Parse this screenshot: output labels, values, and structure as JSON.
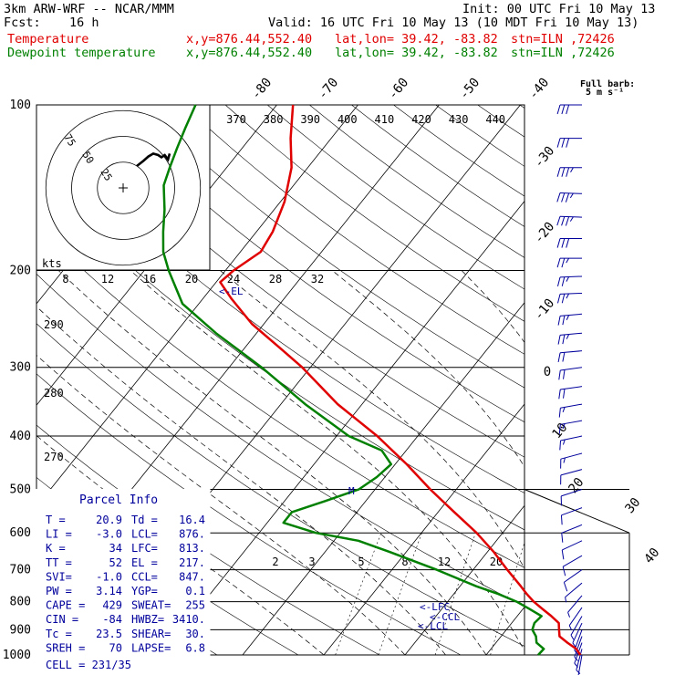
{
  "header": {
    "model": "3km ARW-WRF -- NCAR/MMM",
    "init": "Init: 00 UTC Fri 10 May 13",
    "fcst_label": "Fcst:",
    "fcst_value": "16 h",
    "valid": "Valid: 16 UTC Fri 10 May 13 (10 MDT Fri 10 May 13)",
    "lines": [
      {
        "label": "Temperature",
        "coords": "x,y=876.44,552.40",
        "latlon": "lat,lon= 39.42, -83.82",
        "stn": "stn=ILN ,72426",
        "color": "#e00000"
      },
      {
        "label": "Dewpoint temperature",
        "coords": "x,y=876.44,552.40",
        "latlon": "lat,lon= 39.42, -83.82",
        "stn": "stn=ILN ,72426",
        "color": "#008000"
      }
    ]
  },
  "chart_data": {
    "type": "line",
    "pressure_ticks": [
      "100",
      "200",
      "300",
      "400",
      "500",
      "600",
      "700",
      "800",
      "900",
      "1000"
    ],
    "skew_temperature_labels": [
      "-80",
      "-70",
      "-60",
      "-50",
      "-40",
      "-30",
      "-20",
      "-10",
      "0",
      "10",
      "20",
      "30",
      "40"
    ],
    "theta_labels": [
      "370",
      "380",
      "390",
      "400",
      "410",
      "420",
      "430",
      "440"
    ],
    "theta_left_labels": [
      "290",
      "280",
      "270"
    ],
    "mixing_ratio_labels": [
      "2",
      "3",
      "5",
      "8",
      "12",
      "20"
    ],
    "hodograph": {
      "units": "kts",
      "ring_labels": [
        "25",
        "50",
        "75"
      ],
      "axis_labels": [
        "8",
        "12",
        "16",
        "20",
        "24",
        "28",
        "32"
      ]
    },
    "wind_legend": {
      "title": "Full barb:",
      "value": "5 m s⁻¹"
    },
    "series": [
      {
        "name": "Temperature",
        "color": "#e00000",
        "points": [
          [
            1000,
            21.6
          ],
          [
            975,
            20.5
          ],
          [
            950,
            18.8
          ],
          [
            925,
            17.2
          ],
          [
            900,
            16.5
          ],
          [
            875,
            15.8
          ],
          [
            850,
            14.2
          ],
          [
            825,
            12.4
          ],
          [
            800,
            10.6
          ],
          [
            775,
            9.0
          ],
          [
            750,
            7.5
          ],
          [
            700,
            4.2
          ],
          [
            650,
            0.8
          ],
          [
            600,
            -3.2
          ],
          [
            550,
            -8.0
          ],
          [
            500,
            -13.2
          ],
          [
            450,
            -18.6
          ],
          [
            400,
            -25.0
          ],
          [
            350,
            -33.0
          ],
          [
            300,
            -41.0
          ],
          [
            275,
            -46.0
          ],
          [
            250,
            -51.5
          ],
          [
            225,
            -56.5
          ],
          [
            210,
            -59.5
          ],
          [
            200,
            -59.0
          ],
          [
            185,
            -57.5
          ],
          [
            170,
            -58.0
          ],
          [
            150,
            -59.5
          ],
          [
            130,
            -62.0
          ],
          [
            115,
            -65.0
          ],
          [
            100,
            -68.0
          ]
        ]
      },
      {
        "name": "Dewpoint temperature",
        "color": "#008000",
        "points": [
          [
            1000,
            16.4
          ],
          [
            975,
            16.5
          ],
          [
            950,
            15.0
          ],
          [
            925,
            14.3
          ],
          [
            900,
            13.2
          ],
          [
            875,
            12.8
          ],
          [
            850,
            13.0
          ],
          [
            825,
            10.8
          ],
          [
            800,
            8.5
          ],
          [
            775,
            5.5
          ],
          [
            750,
            2.0
          ],
          [
            700,
            -4.5
          ],
          [
            650,
            -12.0
          ],
          [
            620,
            -17.0
          ],
          [
            600,
            -23.0
          ],
          [
            575,
            -28.0
          ],
          [
            550,
            -28.0
          ],
          [
            525,
            -25.0
          ],
          [
            500,
            -22.0
          ],
          [
            475,
            -21.0
          ],
          [
            450,
            -20.5
          ],
          [
            425,
            -23.0
          ],
          [
            400,
            -28.5
          ],
          [
            350,
            -37.0
          ],
          [
            300,
            -46.0
          ],
          [
            260,
            -55.0
          ],
          [
            230,
            -62.0
          ],
          [
            200,
            -67.0
          ],
          [
            185,
            -69.5
          ],
          [
            170,
            -71.5
          ],
          [
            155,
            -73.5
          ],
          [
            140,
            -76.0
          ],
          [
            130,
            -77.0
          ],
          [
            120,
            -78.0
          ],
          [
            110,
            -79.0
          ],
          [
            100,
            -80.0
          ]
        ]
      }
    ],
    "level_markers": [
      {
        "label": "<-EL",
        "p": 217
      },
      {
        "label": "M",
        "p": 500
      },
      {
        "label": "<-LFC",
        "p": 813
      },
      {
        "label": "<-CCL",
        "p": 847
      },
      {
        "label": "<-LCL",
        "p": 876
      }
    ],
    "wind_barbs": [
      {
        "p": 100,
        "dir": 270,
        "spd": 30
      },
      {
        "p": 115,
        "dir": 270,
        "spd": 32
      },
      {
        "p": 130,
        "dir": 270,
        "spd": 35
      },
      {
        "p": 145,
        "dir": 272,
        "spd": 35
      },
      {
        "p": 160,
        "dir": 272,
        "spd": 35
      },
      {
        "p": 175,
        "dir": 270,
        "spd": 30
      },
      {
        "p": 190,
        "dir": 270,
        "spd": 27
      },
      {
        "p": 205,
        "dir": 268,
        "spd": 27
      },
      {
        "p": 220,
        "dir": 268,
        "spd": 25
      },
      {
        "p": 240,
        "dir": 265,
        "spd": 25
      },
      {
        "p": 260,
        "dir": 265,
        "spd": 25
      },
      {
        "p": 280,
        "dir": 265,
        "spd": 22
      },
      {
        "p": 300,
        "dir": 262,
        "spd": 20
      },
      {
        "p": 325,
        "dir": 262,
        "spd": 20
      },
      {
        "p": 350,
        "dir": 260,
        "spd": 17
      },
      {
        "p": 375,
        "dir": 260,
        "spd": 15
      },
      {
        "p": 400,
        "dir": 258,
        "spd": 15
      },
      {
        "p": 430,
        "dir": 255,
        "spd": 15
      },
      {
        "p": 460,
        "dir": 255,
        "spd": 12
      },
      {
        "p": 500,
        "dir": 252,
        "spd": 12
      },
      {
        "p": 540,
        "dir": 250,
        "spd": 12
      },
      {
        "p": 580,
        "dir": 248,
        "spd": 12
      },
      {
        "p": 620,
        "dir": 245,
        "spd": 10
      },
      {
        "p": 660,
        "dir": 240,
        "spd": 10
      },
      {
        "p": 700,
        "dir": 235,
        "spd": 10
      },
      {
        "p": 740,
        "dir": 230,
        "spd": 7
      },
      {
        "p": 780,
        "dir": 220,
        "spd": 7
      },
      {
        "p": 820,
        "dir": 215,
        "spd": 7
      },
      {
        "p": 850,
        "dir": 210,
        "spd": 5
      },
      {
        "p": 875,
        "dir": 205,
        "spd": 5
      },
      {
        "p": 900,
        "dir": 200,
        "spd": 5
      },
      {
        "p": 925,
        "dir": 200,
        "spd": 5
      },
      {
        "p": 950,
        "dir": 200,
        "spd": 5
      },
      {
        "p": 975,
        "dir": 195,
        "spd": 5
      },
      {
        "p": 1000,
        "dir": 190,
        "spd": 5
      }
    ],
    "hodograph_trace": [
      [
        0,
        5
      ],
      [
        8,
        12
      ],
      [
        14,
        18
      ],
      [
        20,
        22
      ],
      [
        26,
        20
      ],
      [
        30,
        17
      ],
      [
        34,
        20
      ],
      [
        38,
        14
      ],
      [
        40,
        22
      ]
    ]
  },
  "parcel_info": {
    "title": "Parcel Info",
    "rows": [
      [
        "T  =",
        "20.9",
        "Td =",
        "16.4"
      ],
      [
        "LI =",
        "-3.0",
        "LCL=",
        "876."
      ],
      [
        "K  =",
        "34",
        "LFC=",
        "813."
      ],
      [
        "TT =",
        "52",
        "EL =",
        "217."
      ],
      [
        "SVI=",
        "-1.0",
        "CCL=",
        "847."
      ],
      [
        "PW =",
        "3.14",
        "YGP=",
        "0.1"
      ],
      [
        "CAPE =",
        "429",
        "SWEAT=",
        "255"
      ],
      [
        "CIN =",
        "-84",
        "HWBZ=",
        "3410."
      ],
      [
        "Tc =",
        "23.5",
        "SHEAR=",
        "30."
      ],
      [
        "SREH =",
        "70",
        "LAPSE=",
        "6.8"
      ]
    ],
    "cell": "CELL = 231/35"
  }
}
